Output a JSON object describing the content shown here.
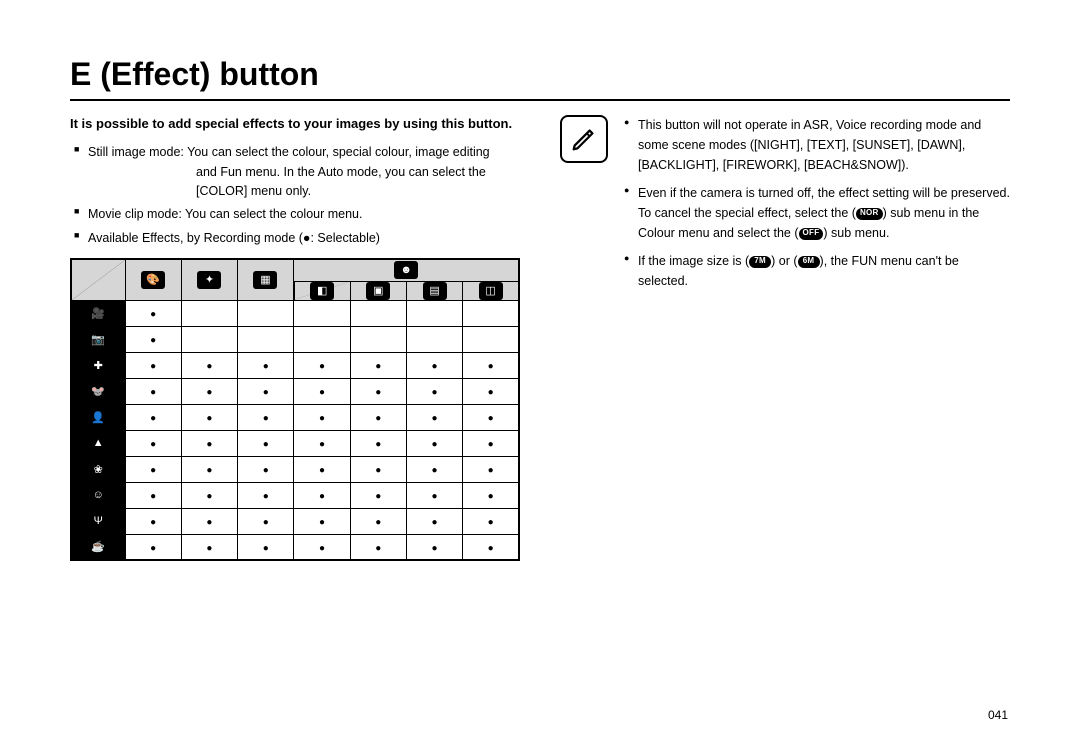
{
  "page_number": "041",
  "title": "E (Effect) button",
  "intro": "It is possible to add special effects to your images by using this button.",
  "left_bullets": [
    {
      "lead": "Still image mode:",
      "text": "You can select the colour, special colour, image editing and Fun menu. In the Auto mode, you can select the [COLOR] menu only."
    },
    {
      "lead": "Movie clip mode:",
      "text": "You can select the colour menu."
    },
    {
      "lead": "",
      "text": "Available Effects, by Recording mode (●: Selectable)"
    }
  ],
  "right_bullets": [
    "This button will not operate in ASR, Voice recording mode and some scene modes ([NIGHT], [TEXT], [SUNSET], [DAWN], [BACKLIGHT], [FIREWORK], [BEACH&SNOW]).",
    "Even if the camera is turned off, the effect setting will be preserved. To cancel the special effect, select the ({NOR}) sub menu in the Colour menu and select the ({OFF}) sub menu.",
    "If the image size is ({7M}) or ({6M}), the FUN menu can't be selected."
  ],
  "table": {
    "top_headers": [
      "",
      "🎨",
      "✦",
      "▦"
    ],
    "fun_header": "☻",
    "fun_sub": [
      "◧",
      "▣",
      "▤",
      "◫"
    ],
    "rows": [
      {
        "mode": "🎥",
        "cells": [
          true,
          false,
          false,
          false,
          false,
          false,
          false
        ]
      },
      {
        "mode": "📷",
        "cells": [
          true,
          false,
          false,
          false,
          false,
          false,
          false
        ]
      },
      {
        "mode": "✚",
        "cells": [
          true,
          true,
          true,
          true,
          true,
          true,
          true
        ]
      },
      {
        "mode": "🐭",
        "cells": [
          true,
          true,
          true,
          true,
          true,
          true,
          true
        ]
      },
      {
        "mode": "👤",
        "cells": [
          true,
          true,
          true,
          true,
          true,
          true,
          true
        ]
      },
      {
        "mode": "▲",
        "cells": [
          true,
          true,
          true,
          true,
          true,
          true,
          true
        ]
      },
      {
        "mode": "❀",
        "cells": [
          true,
          true,
          true,
          true,
          true,
          true,
          true
        ]
      },
      {
        "mode": "☺",
        "cells": [
          true,
          true,
          true,
          true,
          true,
          true,
          true
        ]
      },
      {
        "mode": "Ψ",
        "cells": [
          true,
          true,
          true,
          true,
          true,
          true,
          true
        ]
      },
      {
        "mode": "☕",
        "cells": [
          true,
          true,
          true,
          true,
          true,
          true,
          true
        ]
      }
    ]
  },
  "pills": {
    "NOR": "NOR",
    "OFF": "OFF",
    "7M": "7M",
    "6M": "6M"
  }
}
